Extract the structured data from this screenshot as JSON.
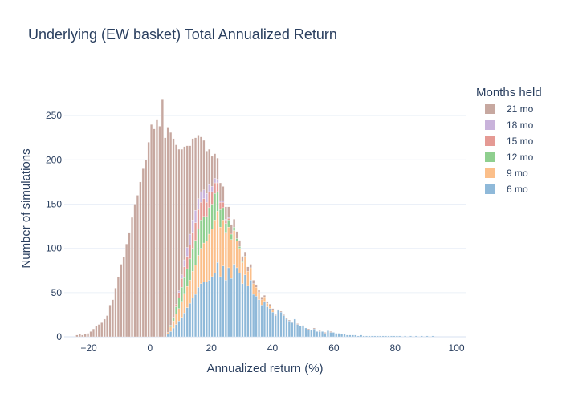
{
  "chart_data": {
    "type": "bar",
    "barmode": "stack",
    "title": "Underlying (EW basket) Total Annualized Return",
    "xlabel": "Annualized return (%)",
    "ylabel": "Number of simulations",
    "xlim": [
      -28,
      103
    ],
    "ylim": [
      0,
      290
    ],
    "bin_width": 0.9,
    "x_ticks": [
      -20,
      0,
      20,
      40,
      60,
      80,
      100
    ],
    "x_tick_labels": [
      "−20",
      "0",
      "20",
      "40",
      "60",
      "80",
      "100"
    ],
    "y_ticks": [
      0,
      50,
      100,
      150,
      200,
      250
    ],
    "y_tick_labels": [
      "0",
      "50",
      "100",
      "150",
      "200",
      "250"
    ],
    "grid": true,
    "legend": {
      "title": "Months held",
      "placement": "right"
    },
    "series": [
      {
        "name": "6 mo",
        "color": "#8fb9d9",
        "x": [
          6,
          7,
          8,
          9,
          10,
          11,
          12,
          13,
          14,
          15,
          16,
          17,
          18,
          19,
          20,
          21,
          22,
          23,
          24,
          25,
          26,
          27,
          28,
          29,
          30,
          31,
          32,
          33,
          34,
          35,
          36,
          37,
          38,
          39,
          40,
          41,
          42,
          43,
          44,
          45,
          46,
          47,
          48,
          49,
          50,
          51,
          52,
          53,
          54,
          55,
          56,
          57,
          58,
          59,
          60,
          61,
          62,
          63,
          64,
          65,
          66,
          67,
          68,
          69,
          70,
          71,
          72,
          73,
          74,
          75,
          76,
          77,
          78,
          79,
          80,
          81,
          82,
          83,
          84,
          85,
          86,
          87,
          88,
          89,
          90,
          91,
          92,
          93,
          94,
          95,
          96,
          97,
          98,
          99,
          100,
          101,
          102
        ],
        "values": [
          3,
          6,
          10,
          14,
          18,
          22,
          27,
          33,
          38,
          44,
          48,
          56,
          60,
          62,
          62,
          64,
          68,
          72,
          84,
          68,
          80,
          64,
          78,
          66,
          82,
          78,
          72,
          60,
          70,
          58,
          64,
          48,
          46,
          42,
          36,
          40,
          34,
          32,
          28,
          24,
          30,
          28,
          24,
          20,
          18,
          16,
          20,
          14,
          12,
          12,
          10,
          8,
          8,
          9,
          6,
          6,
          6,
          4,
          7,
          5,
          5,
          4,
          4,
          3,
          3,
          2,
          2,
          2,
          2,
          1,
          2,
          1,
          1,
          1,
          1,
          1,
          1,
          1,
          1,
          1,
          1,
          1,
          1,
          1,
          1,
          0,
          1,
          0,
          1,
          0,
          1,
          0,
          1,
          0,
          1,
          0,
          1
        ]
      },
      {
        "name": "9 mo",
        "color": "#fbbf8a",
        "x": [
          6,
          7,
          8,
          9,
          10,
          11,
          12,
          13,
          14,
          15,
          16,
          17,
          18,
          19,
          20,
          21,
          22,
          23,
          24,
          25,
          26,
          27,
          28,
          29,
          30,
          31,
          32,
          33,
          34,
          35,
          36,
          37,
          38,
          39,
          40,
          41,
          42,
          43,
          44
        ],
        "values": [
          2,
          5,
          8,
          12,
          14,
          18,
          22,
          24,
          26,
          30,
          33,
          36,
          40,
          44,
          46,
          52,
          54,
          60,
          58,
          56,
          52,
          54,
          46,
          44,
          38,
          30,
          28,
          24,
          20,
          16,
          14,
          12,
          10,
          8,
          6,
          5,
          4,
          3,
          2
        ]
      },
      {
        "name": "12 mo",
        "color": "#8fcf8f",
        "x": [
          7,
          8,
          9,
          10,
          11,
          12,
          13,
          14,
          15,
          16,
          17,
          18,
          19,
          20,
          21,
          22,
          23,
          24,
          25,
          26,
          27,
          28,
          29,
          30,
          31,
          32,
          33,
          34
        ],
        "values": [
          2,
          4,
          8,
          12,
          16,
          18,
          20,
          24,
          26,
          28,
          30,
          32,
          30,
          28,
          30,
          28,
          30,
          22,
          20,
          14,
          10,
          8,
          6,
          4,
          3,
          2,
          1,
          1
        ]
      },
      {
        "name": "15 mo",
        "color": "#e59a94",
        "x": [
          9,
          10,
          11,
          12,
          13,
          14,
          15,
          16,
          17,
          18,
          19,
          20,
          21,
          22,
          23,
          24,
          25,
          26,
          27,
          28,
          29
        ],
        "values": [
          3,
          6,
          10,
          12,
          14,
          16,
          18,
          20,
          22,
          20,
          20,
          16,
          18,
          14,
          12,
          10,
          8,
          6,
          4,
          2,
          1
        ]
      },
      {
        "name": "18 mo",
        "color": "#c9b3db",
        "x": [
          10,
          11,
          12,
          13,
          14,
          15,
          16,
          17,
          18,
          19,
          20,
          21,
          22,
          23,
          24,
          25,
          26,
          27,
          28
        ],
        "values": [
          2,
          4,
          8,
          10,
          12,
          14,
          14,
          12,
          12,
          10,
          10,
          8,
          6,
          5,
          4,
          2,
          2,
          1,
          1
        ]
      },
      {
        "name": "21 mo",
        "color": "#c7a8a0",
        "x": [
          -27,
          -26,
          -25,
          -24,
          -23,
          -22,
          -21,
          -20,
          -19,
          -18,
          -17,
          -16,
          -15,
          -14,
          -13,
          -12,
          -11,
          -10,
          -9,
          -8,
          -7,
          -6,
          -5,
          -4,
          -3,
          -2,
          -1,
          0,
          1,
          2,
          3,
          4,
          5,
          6,
          7,
          8,
          9,
          10,
          11,
          12,
          13,
          14,
          15,
          16,
          17,
          18,
          19,
          20,
          21,
          22,
          23,
          24,
          25,
          26,
          27,
          28,
          29,
          30,
          31,
          32,
          33,
          34,
          35,
          36,
          37,
          38,
          39,
          40,
          41,
          42,
          43,
          44,
          45,
          46,
          47,
          48,
          49,
          50,
          51,
          52,
          53,
          54,
          55,
          56,
          57,
          58,
          59,
          60,
          61,
          62,
          63,
          64,
          65
        ],
        "values": [
          2,
          3,
          2,
          3,
          4,
          6,
          9,
          12,
          14,
          16,
          20,
          24,
          36,
          42,
          55,
          68,
          82,
          90,
          105,
          118,
          135,
          150,
          160,
          175,
          190,
          200,
          220,
          240,
          235,
          245,
          238,
          268,
          225,
          232,
          218,
          202,
          180,
          160,
          142,
          128,
          115,
          100,
          92,
          82,
          72,
          62,
          56,
          48,
          40,
          34,
          28,
          24,
          20,
          16,
          14,
          12,
          10,
          9,
          8,
          7,
          6,
          5,
          5,
          4,
          4,
          3,
          3,
          3,
          2,
          2,
          2,
          2,
          1,
          1,
          1,
          1,
          1,
          1,
          1,
          0,
          1,
          0,
          1,
          0,
          1,
          0,
          1,
          0,
          1,
          0,
          1,
          0,
          1
        ]
      }
    ]
  }
}
